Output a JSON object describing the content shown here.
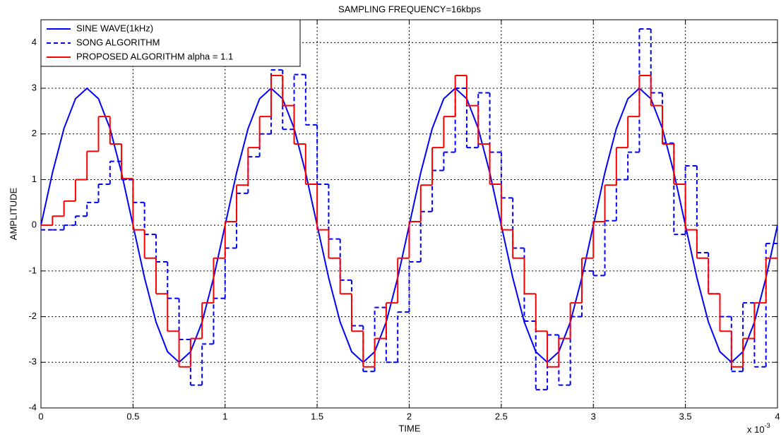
{
  "chart_data": {
    "type": "line",
    "title": "SAMPLING FREQUENCY=16kbps",
    "x_label": "TIME",
    "y_label": "AMPLITUDE",
    "x_multiplier": "x 10",
    "x_multiplier_exponent": "-3",
    "xlim": [
      0,
      4
    ],
    "ylim": [
      -4,
      4.5
    ],
    "xticks": [
      0,
      0.5,
      1,
      1.5,
      2,
      2.5,
      3,
      3.5,
      4
    ],
    "yticks": [
      -4,
      -3,
      -2,
      -1,
      0,
      1,
      2,
      3,
      4
    ],
    "grid": true,
    "legend": "upper left",
    "series": [
      {
        "name": "SINE WAVE(1kHz)",
        "color": "#0000ff",
        "dash": false,
        "step": false,
        "x": [
          0,
          0.0625,
          0.125,
          0.1875,
          0.25,
          0.3125,
          0.375,
          0.4375,
          0.5,
          0.5625,
          0.625,
          0.6875,
          0.75,
          0.8125,
          0.875,
          0.9375,
          1,
          1.0625,
          1.125,
          1.1875,
          1.25,
          1.3125,
          1.375,
          1.4375,
          1.5,
          1.5625,
          1.625,
          1.6875,
          1.75,
          1.8125,
          1.875,
          1.9375,
          2,
          2.0625,
          2.125,
          2.1875,
          2.25,
          2.3125,
          2.375,
          2.4375,
          2.5,
          2.5625,
          2.625,
          2.6875,
          2.75,
          2.8125,
          2.875,
          2.9375,
          3,
          3.0625,
          3.125,
          3.1875,
          3.25,
          3.3125,
          3.375,
          3.4375,
          3.5,
          3.5625,
          3.625,
          3.6875,
          3.75,
          3.8125,
          3.875,
          3.9375,
          4
        ],
        "values": [
          0,
          1.15,
          2.12,
          2.77,
          3,
          2.77,
          2.12,
          1.15,
          0,
          -1.15,
          -2.12,
          -2.77,
          -3,
          -2.77,
          -2.12,
          -1.15,
          0,
          1.15,
          2.12,
          2.77,
          3,
          2.77,
          2.12,
          1.15,
          0,
          -1.15,
          -2.12,
          -2.77,
          -3,
          -2.77,
          -2.12,
          -1.15,
          0,
          1.15,
          2.12,
          2.77,
          3,
          2.77,
          2.12,
          1.15,
          0,
          -1.15,
          -2.12,
          -2.77,
          -3,
          -2.77,
          -2.12,
          -1.15,
          0,
          1.15,
          2.12,
          2.77,
          3,
          2.77,
          2.12,
          1.15,
          0,
          -1.15,
          -2.12,
          -2.77,
          -3,
          -2.77,
          -2.12,
          -1.15,
          0
        ]
      },
      {
        "name": "SONG ALGORITHM",
        "color": "#0000ff",
        "dash": true,
        "step": true,
        "x": [
          0,
          0.0625,
          0.125,
          0.1875,
          0.25,
          0.3125,
          0.375,
          0.4375,
          0.5,
          0.5625,
          0.625,
          0.6875,
          0.75,
          0.8125,
          0.875,
          0.9375,
          1,
          1.0625,
          1.125,
          1.1875,
          1.25,
          1.3125,
          1.375,
          1.4375,
          1.5,
          1.5625,
          1.625,
          1.6875,
          1.75,
          1.8125,
          1.875,
          1.9375,
          2,
          2.0625,
          2.125,
          2.1875,
          2.25,
          2.3125,
          2.375,
          2.4375,
          2.5,
          2.5625,
          2.625,
          2.6875,
          2.75,
          2.8125,
          2.875,
          2.9375,
          3,
          3.0625,
          3.125,
          3.1875,
          3.25,
          3.3125,
          3.375,
          3.4375,
          3.5,
          3.5625,
          3.625,
          3.6875,
          3.75,
          3.8125,
          3.875,
          3.9375
        ],
        "values": [
          -0.1,
          -0.1,
          0,
          0.2,
          0.5,
          0.9,
          1.4,
          1.0,
          0.5,
          -0.2,
          -0.8,
          -1.6,
          -2.5,
          -3.5,
          -2.6,
          -1.6,
          -0.5,
          0.7,
          1.5,
          2.0,
          3.4,
          2.1,
          3.3,
          2.2,
          0.9,
          -0.3,
          -1.2,
          -2.2,
          -3.2,
          -1.8,
          -3.0,
          -1.9,
          -0.8,
          0.3,
          1.2,
          1.6,
          3.0,
          1.7,
          2.9,
          1.6,
          0.6,
          -0.5,
          -2.1,
          -3.6,
          -2.4,
          -3.5,
          -2.0,
          -1.0,
          -1.1,
          0.1,
          1.0,
          1.6,
          4.3,
          2.9,
          1.8,
          -0.2,
          1.3,
          -0.6,
          -1.5,
          -2.0,
          -3.2,
          -1.7,
          -3.1,
          -0.4
        ]
      },
      {
        "name": "PROPOSED ALGORITHM alpha = 1.1",
        "color": "#ff0000",
        "dash": false,
        "step": true,
        "x": [
          0,
          0.0625,
          0.125,
          0.1875,
          0.25,
          0.3125,
          0.375,
          0.4375,
          0.5,
          0.5625,
          0.625,
          0.6875,
          0.75,
          0.8125,
          0.875,
          0.9375,
          1,
          1.0625,
          1.125,
          1.1875,
          1.25,
          1.3125,
          1.375,
          1.4375,
          1.5,
          1.5625,
          1.625,
          1.6875,
          1.75,
          1.8125,
          1.875,
          1.9375,
          2,
          2.0625,
          2.125,
          2.1875,
          2.25,
          2.3125,
          2.375,
          2.4375,
          2.5,
          2.5625,
          2.625,
          2.6875,
          2.75,
          2.8125,
          2.875,
          2.9375,
          3,
          3.0625,
          3.125,
          3.1875,
          3.25,
          3.3125,
          3.375,
          3.4375,
          3.5,
          3.5625,
          3.625,
          3.6875,
          3.75,
          3.8125,
          3.875,
          3.9375
        ],
        "values": [
          0,
          0.2,
          0.53,
          1.0,
          1.62,
          2.38,
          1.78,
          1.02,
          -0.1,
          -0.72,
          -1.5,
          -2.32,
          -3.1,
          -2.48,
          -1.7,
          -0.72,
          0.08,
          0.88,
          1.7,
          2.38,
          3.28,
          2.62,
          1.78,
          0.9,
          -0.1,
          -0.72,
          -1.5,
          -2.32,
          -3.1,
          -2.48,
          -1.7,
          -0.72,
          0.08,
          0.88,
          1.7,
          2.38,
          3.28,
          2.62,
          1.78,
          0.9,
          -0.1,
          -0.72,
          -1.5,
          -2.32,
          -3.1,
          -2.48,
          -1.7,
          -0.72,
          0.08,
          0.88,
          1.7,
          2.38,
          3.28,
          2.62,
          1.78,
          0.9,
          -0.1,
          -0.72,
          -1.5,
          -2.32,
          -3.1,
          -2.48,
          -1.7,
          -0.72
        ]
      }
    ]
  }
}
